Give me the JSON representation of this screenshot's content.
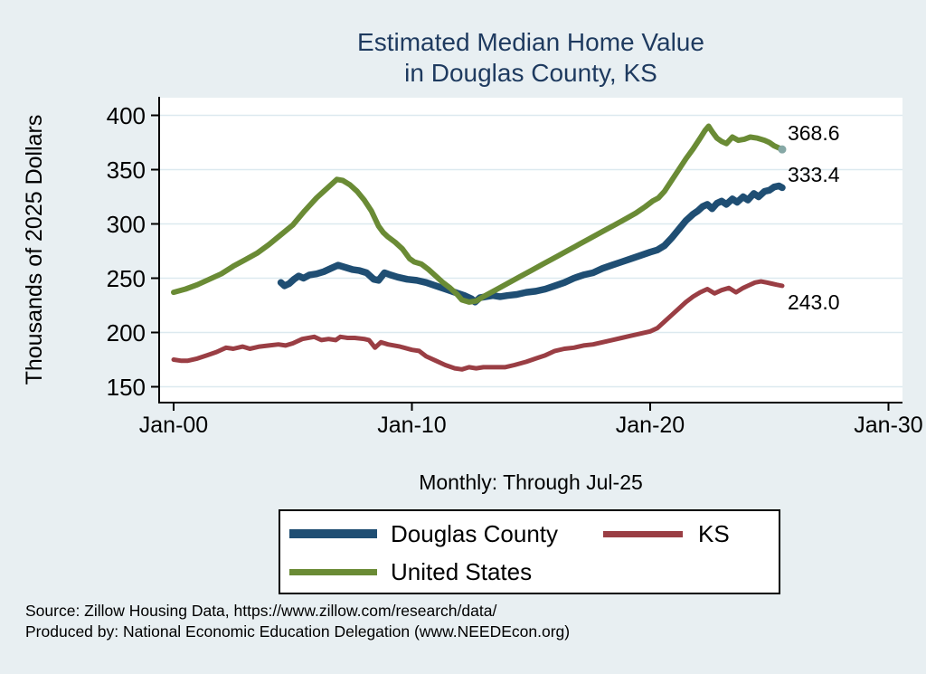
{
  "chart_data": {
    "type": "line",
    "title_line1": "Estimated Median Home Value",
    "title_line2": "in Douglas County, KS",
    "ylabel": "Thousands of 2025 Dollars",
    "xlabel": "Monthly: Through Jul-25",
    "xlim": [
      2000,
      2030
    ],
    "ylim": [
      150,
      400
    ],
    "grid": true,
    "legend_position": "bottom",
    "y_ticks": [
      {
        "label": "400",
        "value": 400
      },
      {
        "label": "350",
        "value": 350
      },
      {
        "label": "300",
        "value": 300
      },
      {
        "label": "250",
        "value": 250
      },
      {
        "label": "200",
        "value": 200
      },
      {
        "label": "150",
        "value": 150
      }
    ],
    "x_ticks": [
      {
        "label": "Jan-00",
        "year": 2000
      },
      {
        "label": "Jan-10",
        "year": 2010
      },
      {
        "label": "Jan-20",
        "year": 2020
      },
      {
        "label": "Jan-30",
        "year": 2030
      }
    ],
    "footer_line1": "Source: Zillow Housing Data, https://www.zillow.com/research/data/",
    "footer_line2": "Produced by: National Economic Education Delegation (www.NEEDEcon.org)",
    "series": [
      {
        "name": "Douglas County",
        "color": "#1f4e73",
        "width": 7.5,
        "end_label": "333.4",
        "label_dy": -14,
        "points": [
          [
            2004.5,
            246
          ],
          [
            2004.65,
            243
          ],
          [
            2004.85,
            245
          ],
          [
            2005.05,
            249
          ],
          [
            2005.25,
            252
          ],
          [
            2005.45,
            250
          ],
          [
            2005.7,
            253
          ],
          [
            2006.0,
            254
          ],
          [
            2006.3,
            256
          ],
          [
            2006.6,
            259
          ],
          [
            2006.9,
            262
          ],
          [
            2007.2,
            260
          ],
          [
            2007.5,
            258
          ],
          [
            2007.8,
            257
          ],
          [
            2008.1,
            255
          ],
          [
            2008.4,
            249
          ],
          [
            2008.6,
            248
          ],
          [
            2008.85,
            255
          ],
          [
            2009.1,
            253
          ],
          [
            2009.4,
            251
          ],
          [
            2009.8,
            249
          ],
          [
            2010.2,
            248
          ],
          [
            2010.6,
            246
          ],
          [
            2011.0,
            243
          ],
          [
            2011.4,
            240
          ],
          [
            2011.8,
            237
          ],
          [
            2012.2,
            234
          ],
          [
            2012.5,
            231
          ],
          [
            2012.65,
            228
          ],
          [
            2012.85,
            232
          ],
          [
            2013.1,
            233
          ],
          [
            2013.4,
            234
          ],
          [
            2013.7,
            233
          ],
          [
            2014.0,
            234
          ],
          [
            2014.4,
            235
          ],
          [
            2014.8,
            237
          ],
          [
            2015.2,
            238
          ],
          [
            2015.6,
            240
          ],
          [
            2016.0,
            243
          ],
          [
            2016.4,
            246
          ],
          [
            2016.8,
            250
          ],
          [
            2017.2,
            253
          ],
          [
            2017.6,
            255
          ],
          [
            2018.0,
            259
          ],
          [
            2018.4,
            262
          ],
          [
            2018.8,
            265
          ],
          [
            2019.2,
            268
          ],
          [
            2019.6,
            271
          ],
          [
            2020.0,
            274
          ],
          [
            2020.3,
            276
          ],
          [
            2020.6,
            280
          ],
          [
            2020.9,
            287
          ],
          [
            2021.2,
            295
          ],
          [
            2021.5,
            303
          ],
          [
            2021.8,
            309
          ],
          [
            2022.0,
            312
          ],
          [
            2022.2,
            316
          ],
          [
            2022.4,
            318
          ],
          [
            2022.6,
            314
          ],
          [
            2022.8,
            319
          ],
          [
            2023.0,
            321
          ],
          [
            2023.2,
            318
          ],
          [
            2023.45,
            323
          ],
          [
            2023.65,
            320
          ],
          [
            2023.9,
            325
          ],
          [
            2024.1,
            322
          ],
          [
            2024.35,
            328
          ],
          [
            2024.55,
            325
          ],
          [
            2024.8,
            330
          ],
          [
            2025.0,
            331
          ],
          [
            2025.2,
            334
          ],
          [
            2025.4,
            335
          ],
          [
            2025.54,
            333.4
          ]
        ]
      },
      {
        "name": "KS",
        "color": "#9a3e44",
        "width": 5,
        "end_label": "243.0",
        "label_dy": 18,
        "points": [
          [
            2000.0,
            175
          ],
          [
            2000.3,
            174
          ],
          [
            2000.6,
            174
          ],
          [
            2001.0,
            176
          ],
          [
            2001.4,
            179
          ],
          [
            2001.8,
            182
          ],
          [
            2002.2,
            186
          ],
          [
            2002.5,
            185
          ],
          [
            2002.9,
            187
          ],
          [
            2003.2,
            185
          ],
          [
            2003.6,
            187
          ],
          [
            2004.0,
            188
          ],
          [
            2004.4,
            189
          ],
          [
            2004.7,
            188
          ],
          [
            2005.0,
            190
          ],
          [
            2005.4,
            194
          ],
          [
            2005.9,
            196
          ],
          [
            2006.2,
            193
          ],
          [
            2006.5,
            194
          ],
          [
            2006.8,
            193
          ],
          [
            2007.0,
            196
          ],
          [
            2007.3,
            195
          ],
          [
            2007.6,
            195
          ],
          [
            2008.0,
            194
          ],
          [
            2008.2,
            193
          ],
          [
            2008.45,
            186
          ],
          [
            2008.7,
            191
          ],
          [
            2009.0,
            189
          ],
          [
            2009.5,
            187
          ],
          [
            2010.0,
            184
          ],
          [
            2010.3,
            183
          ],
          [
            2010.6,
            178
          ],
          [
            2011.0,
            174
          ],
          [
            2011.4,
            170
          ],
          [
            2011.8,
            167
          ],
          [
            2012.1,
            166
          ],
          [
            2012.4,
            168
          ],
          [
            2012.7,
            167
          ],
          [
            2013.0,
            168
          ],
          [
            2013.4,
            168
          ],
          [
            2013.9,
            168
          ],
          [
            2014.3,
            170
          ],
          [
            2014.8,
            173
          ],
          [
            2015.2,
            176
          ],
          [
            2015.6,
            179
          ],
          [
            2016.0,
            183
          ],
          [
            2016.4,
            185
          ],
          [
            2016.8,
            186
          ],
          [
            2017.2,
            188
          ],
          [
            2017.6,
            189
          ],
          [
            2018.0,
            191
          ],
          [
            2018.4,
            193
          ],
          [
            2018.8,
            195
          ],
          [
            2019.2,
            197
          ],
          [
            2019.6,
            199
          ],
          [
            2020.0,
            201
          ],
          [
            2020.3,
            204
          ],
          [
            2020.6,
            210
          ],
          [
            2020.9,
            216
          ],
          [
            2021.2,
            222
          ],
          [
            2021.5,
            228
          ],
          [
            2021.8,
            233
          ],
          [
            2022.1,
            237
          ],
          [
            2022.4,
            240
          ],
          [
            2022.7,
            236
          ],
          [
            2023.0,
            239
          ],
          [
            2023.3,
            241
          ],
          [
            2023.6,
            237
          ],
          [
            2023.9,
            241
          ],
          [
            2024.1,
            243
          ],
          [
            2024.4,
            246
          ],
          [
            2024.65,
            247
          ],
          [
            2024.9,
            246
          ],
          [
            2025.1,
            245
          ],
          [
            2025.3,
            244
          ],
          [
            2025.54,
            243.0
          ]
        ]
      },
      {
        "name": "United States",
        "color": "#6a8b35",
        "width": 6,
        "end_label": "368.6",
        "label_dy": -18,
        "end_marker_color": "#86a8a6",
        "points": [
          [
            2000.0,
            237
          ],
          [
            2000.5,
            240
          ],
          [
            2001.0,
            244
          ],
          [
            2001.5,
            249
          ],
          [
            2002.0,
            254
          ],
          [
            2002.5,
            261
          ],
          [
            2003.0,
            267
          ],
          [
            2003.5,
            273
          ],
          [
            2004.0,
            281
          ],
          [
            2004.5,
            290
          ],
          [
            2005.0,
            299
          ],
          [
            2005.5,
            312
          ],
          [
            2006.0,
            324
          ],
          [
            2006.3,
            330
          ],
          [
            2006.6,
            336
          ],
          [
            2006.85,
            341
          ],
          [
            2007.1,
            340
          ],
          [
            2007.4,
            336
          ],
          [
            2007.7,
            330
          ],
          [
            2008.0,
            322
          ],
          [
            2008.3,
            312
          ],
          [
            2008.6,
            298
          ],
          [
            2008.8,
            292
          ],
          [
            2009.0,
            288
          ],
          [
            2009.3,
            283
          ],
          [
            2009.6,
            277
          ],
          [
            2009.9,
            268
          ],
          [
            2010.1,
            265
          ],
          [
            2010.4,
            263
          ],
          [
            2010.7,
            258
          ],
          [
            2011.0,
            252
          ],
          [
            2011.3,
            246
          ],
          [
            2011.6,
            241
          ],
          [
            2011.9,
            235
          ],
          [
            2012.1,
            230
          ],
          [
            2012.4,
            228
          ],
          [
            2012.7,
            229
          ],
          [
            2013.0,
            233
          ],
          [
            2013.5,
            239
          ],
          [
            2014.0,
            245
          ],
          [
            2014.5,
            251
          ],
          [
            2015.0,
            257
          ],
          [
            2015.5,
            263
          ],
          [
            2016.0,
            269
          ],
          [
            2016.5,
            275
          ],
          [
            2017.0,
            281
          ],
          [
            2017.5,
            287
          ],
          [
            2018.0,
            293
          ],
          [
            2018.5,
            299
          ],
          [
            2019.0,
            305
          ],
          [
            2019.4,
            310
          ],
          [
            2019.8,
            316
          ],
          [
            2020.1,
            321
          ],
          [
            2020.35,
            324
          ],
          [
            2020.6,
            330
          ],
          [
            2020.9,
            340
          ],
          [
            2021.2,
            350
          ],
          [
            2021.5,
            360
          ],
          [
            2021.8,
            369
          ],
          [
            2022.1,
            379
          ],
          [
            2022.3,
            386
          ],
          [
            2022.45,
            390
          ],
          [
            2022.6,
            385
          ],
          [
            2022.8,
            379
          ],
          [
            2023.0,
            376
          ],
          [
            2023.2,
            374
          ],
          [
            2023.45,
            380
          ],
          [
            2023.7,
            377
          ],
          [
            2023.95,
            378
          ],
          [
            2024.2,
            380
          ],
          [
            2024.5,
            379
          ],
          [
            2024.8,
            377
          ],
          [
            2025.0,
            375
          ],
          [
            2025.2,
            372
          ],
          [
            2025.54,
            368.6
          ]
        ]
      }
    ]
  },
  "colors": {
    "background": "#e8eff2",
    "plot_background": "#ffffff",
    "gridline": "#dce9ef",
    "axis": "#000000",
    "title": "#1e3a5f"
  }
}
